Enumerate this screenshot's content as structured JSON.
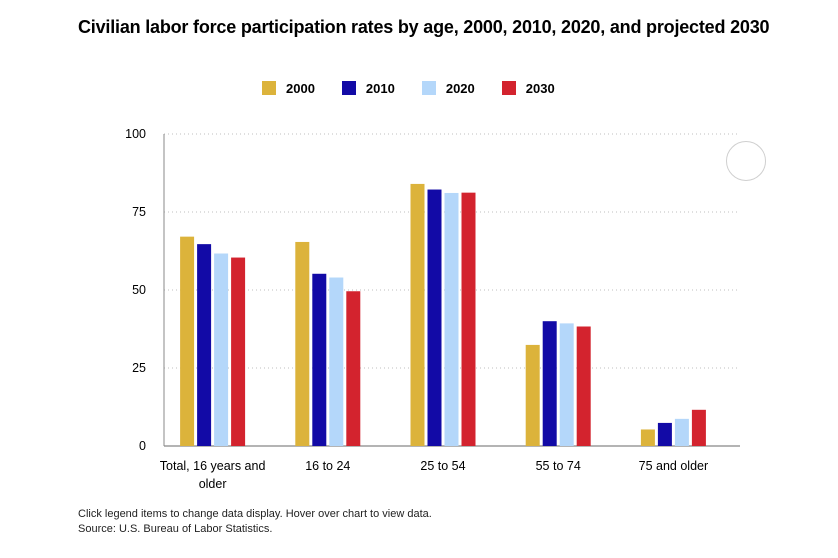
{
  "title": "Civilian labor force participation rates by age, 2000, 2010, 2020, and projected 2030",
  "footer": {
    "note": "Click legend items to change data display. Hover over chart to view data.",
    "source": "Source: U.S. Bureau of Labor Statistics."
  },
  "chart_data": {
    "type": "bar",
    "title": "Civilian labor force participation rates by age, 2000, 2010, 2020, and projected 2030",
    "xlabel": "",
    "ylabel": "",
    "ylim": [
      0,
      100
    ],
    "yticks": [
      0,
      25,
      50,
      75,
      100
    ],
    "grid": true,
    "legend_position": "top",
    "categories": [
      "Total, 16 years and older",
      "16 to 24",
      "25 to 54",
      "55 to 74",
      "75 and older"
    ],
    "series": [
      {
        "name": "2000",
        "color": "#dcb33b",
        "values": [
          67.1,
          65.4,
          84.0,
          32.4,
          5.3
        ]
      },
      {
        "name": "2010",
        "color": "#120aa6",
        "values": [
          64.7,
          55.2,
          82.2,
          40.0,
          7.4
        ]
      },
      {
        "name": "2020",
        "color": "#b4d7fa",
        "values": [
          61.7,
          54.0,
          81.1,
          39.3,
          8.7
        ]
      },
      {
        "name": "2030",
        "color": "#d3232e",
        "values": [
          60.4,
          49.6,
          81.2,
          38.3,
          11.6
        ]
      }
    ]
  }
}
